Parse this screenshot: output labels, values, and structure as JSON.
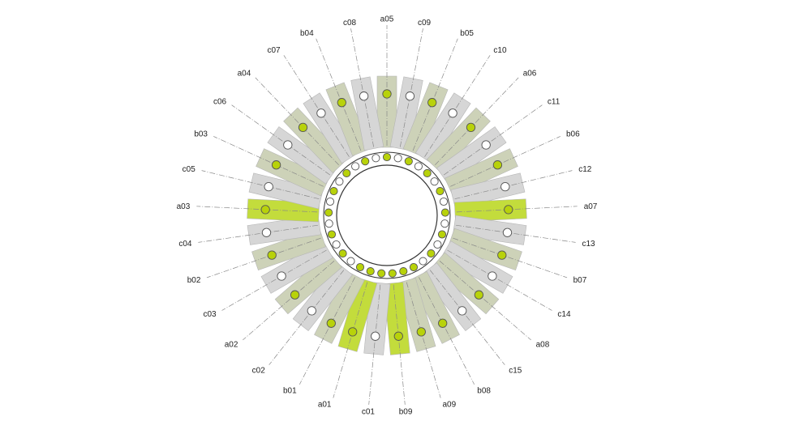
{
  "diagram": {
    "colors": {
      "gray": "#d6d6d6",
      "olive": "#cdd2b8",
      "lime": "#c3dc3c",
      "dot": "#b8d20a",
      "stroke": "#555555",
      "ring": "#333333"
    },
    "segments": [
      {
        "label": "a05",
        "shade": "olive",
        "dot": "filled",
        "inner": "filled"
      },
      {
        "label": "c09",
        "shade": "gray",
        "dot": "empty",
        "inner": "empty"
      },
      {
        "label": "b05",
        "shade": "olive",
        "dot": "filled",
        "inner": "filled"
      },
      {
        "label": "c10",
        "shade": "gray",
        "dot": "empty",
        "inner": "empty"
      },
      {
        "label": "a06",
        "shade": "olive",
        "dot": "filled",
        "inner": "filled"
      },
      {
        "label": "c11",
        "shade": "gray",
        "dot": "empty",
        "inner": "empty"
      },
      {
        "label": "b06",
        "shade": "olive",
        "dot": "filled",
        "inner": "filled"
      },
      {
        "label": "c12",
        "shade": "gray",
        "dot": "empty",
        "inner": "empty"
      },
      {
        "label": "a07",
        "shade": "lime",
        "dot": "filled",
        "inner": "filled"
      },
      {
        "label": "c13",
        "shade": "gray",
        "dot": "empty",
        "inner": "empty"
      },
      {
        "label": "b07",
        "shade": "olive",
        "dot": "filled",
        "inner": "filled"
      },
      {
        "label": "c14",
        "shade": "gray",
        "dot": "empty",
        "inner": "empty"
      },
      {
        "label": "a08",
        "shade": "olive",
        "dot": "filled",
        "inner": "filled"
      },
      {
        "label": "c15",
        "shade": "gray",
        "dot": "empty",
        "inner": "empty"
      },
      {
        "label": "b08",
        "shade": "olive",
        "dot": "filled",
        "inner": "filled"
      },
      {
        "label": "a09",
        "shade": "olive",
        "dot": "filled",
        "inner": "filled"
      },
      {
        "label": "b09",
        "shade": "lime",
        "dot": "filled",
        "inner": "filled"
      },
      {
        "label": "c01",
        "shade": "gray",
        "dot": "empty",
        "inner": "filled"
      },
      {
        "label": "a01",
        "shade": "lime",
        "dot": "filled",
        "inner": "filled"
      },
      {
        "label": "b01",
        "shade": "olive",
        "dot": "filled",
        "inner": "filled"
      },
      {
        "label": "c02",
        "shade": "gray",
        "dot": "empty",
        "inner": "empty"
      },
      {
        "label": "a02",
        "shade": "olive",
        "dot": "filled",
        "inner": "filled"
      },
      {
        "label": "c03",
        "shade": "gray",
        "dot": "empty",
        "inner": "empty"
      },
      {
        "label": "b02",
        "shade": "olive",
        "dot": "filled",
        "inner": "filled"
      },
      {
        "label": "c04",
        "shade": "gray",
        "dot": "empty",
        "inner": "empty"
      },
      {
        "label": "a03",
        "shade": "lime",
        "dot": "filled",
        "inner": "filled"
      },
      {
        "label": "c05",
        "shade": "gray",
        "dot": "empty",
        "inner": "empty"
      },
      {
        "label": "b03",
        "shade": "olive",
        "dot": "filled",
        "inner": "filled"
      },
      {
        "label": "c06",
        "shade": "gray",
        "dot": "empty",
        "inner": "empty"
      },
      {
        "label": "a04",
        "shade": "olive",
        "dot": "filled",
        "inner": "filled"
      },
      {
        "label": "c07",
        "shade": "gray",
        "dot": "empty",
        "inner": "empty"
      },
      {
        "label": "b04",
        "shade": "olive",
        "dot": "filled",
        "inner": "filled"
      },
      {
        "label": "c08",
        "shade": "gray",
        "dot": "empty",
        "inner": "empty"
      }
    ]
  }
}
